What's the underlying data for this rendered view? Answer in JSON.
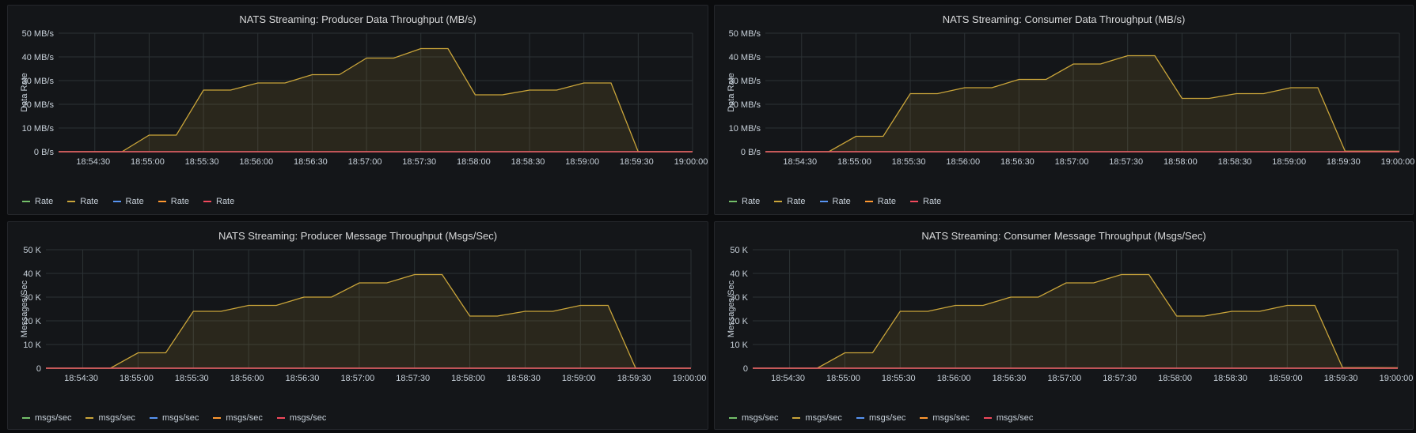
{
  "colors": {
    "background": "#0b0c0e",
    "panel": "#141619",
    "grid": "#2c3235",
    "series": [
      "#73bf69",
      "#caa53a",
      "#5794f2",
      "#ff9830",
      "#f2495c"
    ]
  },
  "chart_data": [
    {
      "type": "area",
      "title": "NATS Streaming: Producer Data Throughput (MB/s)",
      "ylabel": "Data Rate",
      "ylim": [
        0,
        50
      ],
      "yticks": [
        0,
        10,
        20,
        30,
        40,
        50
      ],
      "ytick_labels": [
        "0 B/s",
        "10 MB/s",
        "20 MB/s",
        "30 MB/s",
        "40 MB/s",
        "50 MB/s"
      ],
      "xlim": [
        "18:54:10",
        "19:00:00"
      ],
      "xticks": [
        "18:54:30",
        "18:55:00",
        "18:55:30",
        "18:56:00",
        "18:56:30",
        "18:57:00",
        "18:57:30",
        "18:58:00",
        "18:58:30",
        "18:59:00",
        "18:59:30",
        "19:00:00"
      ],
      "legend_position": "bottom-left",
      "series": [
        {
          "name": "Rate",
          "color": "#73bf69",
          "x": [
            "18:54:10",
            "19:00:00"
          ],
          "values": [
            0,
            0
          ]
        },
        {
          "name": "Rate",
          "color": "#caa53a",
          "x": [
            "18:54:10",
            "18:54:45",
            "18:55:00",
            "18:55:15",
            "18:55:30",
            "18:55:45",
            "18:56:00",
            "18:56:15",
            "18:56:30",
            "18:56:45",
            "18:57:00",
            "18:57:15",
            "18:57:30",
            "18:57:45",
            "18:58:00",
            "18:58:15",
            "18:58:30",
            "18:58:45",
            "18:59:00",
            "18:59:15",
            "18:59:30",
            "19:00:00"
          ],
          "values": [
            0,
            0,
            7,
            7,
            26,
            26,
            29,
            29,
            32.5,
            32.5,
            39.5,
            39.5,
            43.5,
            43.5,
            24,
            24,
            26,
            26,
            29,
            29,
            0,
            0
          ]
        },
        {
          "name": "Rate",
          "color": "#5794f2",
          "x": [
            "18:54:10",
            "19:00:00"
          ],
          "values": [
            0,
            0
          ]
        },
        {
          "name": "Rate",
          "color": "#ff9830",
          "x": [
            "18:54:10",
            "19:00:00"
          ],
          "values": [
            0,
            0
          ]
        },
        {
          "name": "Rate",
          "color": "#f2495c",
          "x": [
            "18:54:10",
            "19:00:00"
          ],
          "values": [
            0,
            0
          ]
        }
      ]
    },
    {
      "type": "area",
      "title": "NATS Streaming: Consumer Data Throughput (MB/s)",
      "ylabel": "Data Rate",
      "ylim": [
        0,
        50
      ],
      "yticks": [
        0,
        10,
        20,
        30,
        40,
        50
      ],
      "ytick_labels": [
        "0 B/s",
        "10 MB/s",
        "20 MB/s",
        "30 MB/s",
        "40 MB/s",
        "50 MB/s"
      ],
      "xlim": [
        "18:54:10",
        "19:00:00"
      ],
      "xticks": [
        "18:54:30",
        "18:55:00",
        "18:55:30",
        "18:56:00",
        "18:56:30",
        "18:57:00",
        "18:57:30",
        "18:58:00",
        "18:58:30",
        "18:59:00",
        "18:59:30",
        "19:00:00"
      ],
      "legend_position": "bottom-left",
      "series": [
        {
          "name": "Rate",
          "color": "#73bf69",
          "x": [
            "18:54:10",
            "19:00:00"
          ],
          "values": [
            0,
            0
          ]
        },
        {
          "name": "Rate",
          "color": "#caa53a",
          "x": [
            "18:54:10",
            "18:54:45",
            "18:55:00",
            "18:55:15",
            "18:55:30",
            "18:55:45",
            "18:56:00",
            "18:56:15",
            "18:56:30",
            "18:56:45",
            "18:57:00",
            "18:57:15",
            "18:57:30",
            "18:57:45",
            "18:58:00",
            "18:58:15",
            "18:58:30",
            "18:58:45",
            "18:59:00",
            "18:59:15",
            "18:59:30",
            "19:00:00"
          ],
          "values": [
            0,
            0,
            6.5,
            6.5,
            24.5,
            24.5,
            27,
            27,
            30.5,
            30.5,
            37,
            37,
            40.5,
            40.5,
            22.5,
            22.5,
            24.5,
            24.5,
            27,
            27,
            0.3,
            0.2
          ]
        },
        {
          "name": "Rate",
          "color": "#5794f2",
          "x": [
            "18:54:10",
            "19:00:00"
          ],
          "values": [
            0,
            0
          ]
        },
        {
          "name": "Rate",
          "color": "#ff9830",
          "x": [
            "18:54:10",
            "19:00:00"
          ],
          "values": [
            0,
            0
          ]
        },
        {
          "name": "Rate",
          "color": "#f2495c",
          "x": [
            "18:54:10",
            "19:00:00"
          ],
          "values": [
            0,
            0
          ]
        }
      ]
    },
    {
      "type": "area",
      "title": "NATS Streaming: Producer Message Throughput (Msgs/Sec)",
      "ylabel": "Messages/Sec",
      "ylim": [
        0,
        50
      ],
      "yticks": [
        0,
        10,
        20,
        30,
        40,
        50
      ],
      "ytick_labels": [
        "0",
        "10 K",
        "20 K",
        "30 K",
        "40 K",
        "50 K"
      ],
      "xlim": [
        "18:54:10",
        "19:00:00"
      ],
      "xticks": [
        "18:54:30",
        "18:55:00",
        "18:55:30",
        "18:56:00",
        "18:56:30",
        "18:57:00",
        "18:57:30",
        "18:58:00",
        "18:58:30",
        "18:59:00",
        "18:59:30",
        "19:00:00"
      ],
      "legend_position": "bottom-left",
      "series": [
        {
          "name": "msgs/sec",
          "color": "#73bf69",
          "x": [
            "18:54:10",
            "19:00:00"
          ],
          "values": [
            0,
            0
          ]
        },
        {
          "name": "msgs/sec",
          "color": "#caa53a",
          "x": [
            "18:54:10",
            "18:54:45",
            "18:55:00",
            "18:55:15",
            "18:55:30",
            "18:55:45",
            "18:56:00",
            "18:56:15",
            "18:56:30",
            "18:56:45",
            "18:57:00",
            "18:57:15",
            "18:57:30",
            "18:57:45",
            "18:58:00",
            "18:58:15",
            "18:58:30",
            "18:58:45",
            "18:59:00",
            "18:59:15",
            "18:59:30",
            "19:00:00"
          ],
          "values": [
            0,
            0,
            6.5,
            6.5,
            24,
            24,
            26.5,
            26.5,
            30,
            30,
            36,
            36,
            39.5,
            39.5,
            22,
            22,
            24,
            24,
            26.5,
            26.5,
            0,
            0
          ]
        },
        {
          "name": "msgs/sec",
          "color": "#5794f2",
          "x": [
            "18:54:10",
            "19:00:00"
          ],
          "values": [
            0,
            0
          ]
        },
        {
          "name": "msgs/sec",
          "color": "#ff9830",
          "x": [
            "18:54:10",
            "19:00:00"
          ],
          "values": [
            0,
            0
          ]
        },
        {
          "name": "msgs/sec",
          "color": "#f2495c",
          "x": [
            "18:54:10",
            "19:00:00"
          ],
          "values": [
            0,
            0
          ]
        }
      ]
    },
    {
      "type": "area",
      "title": "NATS Streaming: Consumer Message Throughput (Msgs/Sec)",
      "ylabel": "Messages/Sec",
      "ylim": [
        0,
        50
      ],
      "yticks": [
        0,
        10,
        20,
        30,
        40,
        50
      ],
      "ytick_labels": [
        "0",
        "10 K",
        "20 K",
        "30 K",
        "40 K",
        "50 K"
      ],
      "xlim": [
        "18:54:10",
        "19:00:00"
      ],
      "xticks": [
        "18:54:30",
        "18:55:00",
        "18:55:30",
        "18:56:00",
        "18:56:30",
        "18:57:00",
        "18:57:30",
        "18:58:00",
        "18:58:30",
        "18:59:00",
        "18:59:30",
        "19:00:00"
      ],
      "legend_position": "bottom-left",
      "series": [
        {
          "name": "msgs/sec",
          "color": "#73bf69",
          "x": [
            "18:54:10",
            "19:00:00"
          ],
          "values": [
            0,
            0
          ]
        },
        {
          "name": "msgs/sec",
          "color": "#caa53a",
          "x": [
            "18:54:10",
            "18:54:45",
            "18:55:00",
            "18:55:15",
            "18:55:30",
            "18:55:45",
            "18:56:00",
            "18:56:15",
            "18:56:30",
            "18:56:45",
            "18:57:00",
            "18:57:15",
            "18:57:30",
            "18:57:45",
            "18:58:00",
            "18:58:15",
            "18:58:30",
            "18:58:45",
            "18:59:00",
            "18:59:15",
            "18:59:30",
            "19:00:00"
          ],
          "values": [
            0,
            0,
            6.5,
            6.5,
            24,
            24,
            26.5,
            26.5,
            30,
            30,
            36,
            36,
            39.5,
            39.5,
            22,
            22,
            24,
            24,
            26.5,
            26.5,
            0.3,
            0.2
          ]
        },
        {
          "name": "msgs/sec",
          "color": "#5794f2",
          "x": [
            "18:54:10",
            "19:00:00"
          ],
          "values": [
            0,
            0
          ]
        },
        {
          "name": "msgs/sec",
          "color": "#ff9830",
          "x": [
            "18:54:10",
            "19:00:00"
          ],
          "values": [
            0,
            0
          ]
        },
        {
          "name": "msgs/sec",
          "color": "#f2495c",
          "x": [
            "18:54:10",
            "19:00:00"
          ],
          "values": [
            0,
            0
          ]
        }
      ]
    }
  ]
}
